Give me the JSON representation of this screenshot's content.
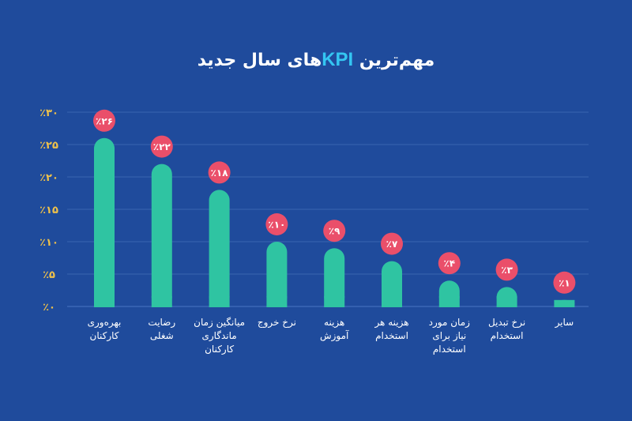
{
  "chart_data": {
    "type": "bar",
    "title": "مهم‌ترین KPIهای سال جدید",
    "title_prefix": "مهم‌ترین",
    "title_kpi": "KPI",
    "title_suffix": "های سال جدید",
    "categories": [
      [
        "بهره‌وری",
        "کارکنان"
      ],
      [
        "رضایت",
        "شغلی"
      ],
      [
        "میانگین زمان",
        "ماندگاری",
        "کارکنان"
      ],
      [
        "نرخ خروج"
      ],
      [
        "هزینه",
        "آموزش"
      ],
      [
        "هزینه هر",
        "استخدام"
      ],
      [
        "زمان مورد",
        "نیاز برای",
        "استخدام"
      ],
      [
        "نرخ تبدیل",
        "استخدام"
      ],
      [
        "سایر"
      ]
    ],
    "values": [
      26,
      22,
      18,
      10,
      9,
      7,
      4,
      3,
      1
    ],
    "data_labels": [
      "٪۲۶",
      "٪۲۲",
      "٪۱۸",
      "٪۱۰",
      "٪۹",
      "٪۷",
      "٪۴",
      "٪۳",
      "٪۱"
    ],
    "y_ticks": [
      0,
      5,
      10,
      15,
      20,
      25,
      30
    ],
    "y_tick_labels": [
      "٪۰",
      "٪۵",
      "٪۱۰",
      "٪۱۵",
      "٪۲۰",
      "٪۲۵",
      "٪۳۰"
    ],
    "ylim": [
      0,
      30
    ],
    "grid": true,
    "legend": "none",
    "colors": {
      "background": "#1f4b9c",
      "bar": "#2fc4a2",
      "bubble": "#ea4f6a",
      "tick_text": "#f0c24a",
      "grid": "#3a64b0",
      "kpi_accent": "#34c6f2"
    }
  }
}
